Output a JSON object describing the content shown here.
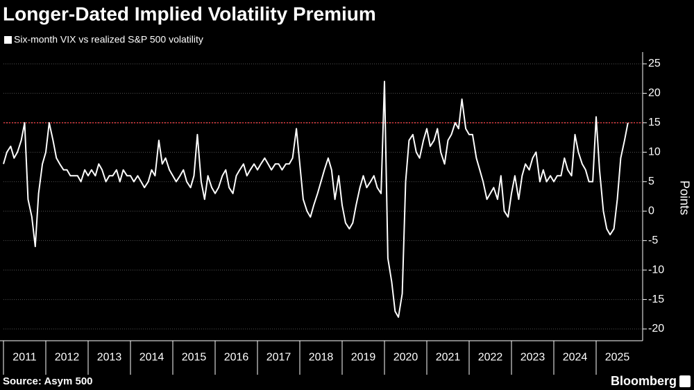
{
  "chart_data": {
    "type": "line",
    "title": "Longer-Dated Implied Volatility Premium",
    "y_label": "Points",
    "source": "Source: Asym 500",
    "brand": "Bloomberg",
    "x": [
      2011.0,
      2011.08,
      2011.17,
      2011.25,
      2011.33,
      2011.42,
      2011.5,
      2011.58,
      2011.67,
      2011.75,
      2011.83,
      2011.92,
      2012.0,
      2012.08,
      2012.17,
      2012.25,
      2012.33,
      2012.42,
      2012.5,
      2012.58,
      2012.67,
      2012.75,
      2012.83,
      2012.92,
      2013.0,
      2013.08,
      2013.17,
      2013.25,
      2013.33,
      2013.42,
      2013.5,
      2013.58,
      2013.67,
      2013.75,
      2013.83,
      2013.92,
      2014.0,
      2014.08,
      2014.17,
      2014.25,
      2014.33,
      2014.42,
      2014.5,
      2014.58,
      2014.67,
      2014.75,
      2014.83,
      2014.92,
      2015.0,
      2015.08,
      2015.17,
      2015.25,
      2015.33,
      2015.42,
      2015.5,
      2015.58,
      2015.67,
      2015.75,
      2015.83,
      2015.92,
      2016.0,
      2016.08,
      2016.17,
      2016.25,
      2016.33,
      2016.42,
      2016.5,
      2016.58,
      2016.67,
      2016.75,
      2016.83,
      2016.92,
      2017.0,
      2017.08,
      2017.17,
      2017.25,
      2017.33,
      2017.42,
      2017.5,
      2017.58,
      2017.67,
      2017.75,
      2017.83,
      2017.92,
      2018.0,
      2018.08,
      2018.17,
      2018.25,
      2018.33,
      2018.42,
      2018.5,
      2018.58,
      2018.67,
      2018.75,
      2018.83,
      2018.92,
      2019.0,
      2019.08,
      2019.17,
      2019.25,
      2019.33,
      2019.42,
      2019.5,
      2019.58,
      2019.67,
      2019.75,
      2019.83,
      2019.92,
      2020.0,
      2020.08,
      2020.17,
      2020.25,
      2020.33,
      2020.42,
      2020.5,
      2020.58,
      2020.67,
      2020.75,
      2020.83,
      2020.92,
      2021.0,
      2021.08,
      2021.17,
      2021.25,
      2021.33,
      2021.42,
      2021.5,
      2021.58,
      2021.67,
      2021.75,
      2021.83,
      2021.92,
      2022.0,
      2022.08,
      2022.17,
      2022.25,
      2022.33,
      2022.42,
      2022.5,
      2022.58,
      2022.67,
      2022.75,
      2022.83,
      2022.92,
      2023.0,
      2023.08,
      2023.17,
      2023.25,
      2023.33,
      2023.42,
      2023.5,
      2023.58,
      2023.67,
      2023.75,
      2023.83,
      2023.92,
      2024.0,
      2024.08,
      2024.17,
      2024.25,
      2024.33,
      2024.42,
      2024.5,
      2024.58,
      2024.67,
      2024.75,
      2024.83,
      2024.92,
      2025.0,
      2025.08,
      2025.17,
      2025.25,
      2025.33,
      2025.42,
      2025.5,
      2025.58,
      2025.67,
      2025.75
    ],
    "series": [
      {
        "name": "Six-month VIX vs realized S&P 500 volatility",
        "color": "#ffffff",
        "values": [
          8,
          10,
          11,
          9,
          10,
          12,
          15,
          2,
          -1,
          -6,
          3,
          8,
          10,
          15,
          12,
          9,
          8,
          7,
          7,
          6,
          6,
          6,
          5,
          7,
          6,
          7,
          6,
          8,
          7,
          5,
          6,
          6,
          7,
          5,
          7,
          6,
          6,
          5,
          6,
          5,
          4,
          5,
          7,
          6,
          12,
          8,
          9,
          7,
          6,
          5,
          6,
          7,
          5,
          4,
          6,
          13,
          5,
          2,
          6,
          4,
          3,
          4,
          6,
          7,
          4,
          3,
          6,
          7,
          8,
          6,
          7,
          8,
          7,
          8,
          9,
          8,
          7,
          8,
          8,
          7,
          8,
          8,
          9,
          14,
          8,
          2,
          0,
          -1,
          1,
          3,
          5,
          7,
          9,
          7,
          2,
          6,
          1,
          -2,
          -3,
          -2,
          1,
          4,
          6,
          4,
          5,
          6,
          4,
          3,
          22,
          -8,
          -12,
          -17,
          -18,
          -14,
          5,
          12,
          13,
          10,
          9,
          12,
          14,
          11,
          12,
          14,
          10,
          8,
          12,
          13,
          15,
          14,
          19,
          14,
          13,
          13,
          9,
          7,
          5,
          2,
          3,
          4,
          2,
          6,
          0,
          -1,
          3,
          6,
          2,
          6,
          8,
          7,
          9,
          10,
          5,
          7,
          5,
          6,
          5,
          6,
          6,
          9,
          7,
          6,
          13,
          10,
          8,
          7,
          5,
          5,
          16,
          7,
          0,
          -3,
          -4,
          -3,
          2,
          9,
          12,
          15
        ]
      }
    ],
    "xlim": [
      2011,
      2026
    ],
    "xticks": [
      2011,
      2012,
      2013,
      2014,
      2015,
      2016,
      2017,
      2018,
      2019,
      2020,
      2021,
      2022,
      2023,
      2024,
      2025
    ],
    "ylim": [
      -22,
      27
    ],
    "yticks": [
      25,
      20,
      15,
      10,
      5,
      0,
      -5,
      -10,
      -15,
      -20
    ],
    "grid": true,
    "reference_line": {
      "value": 15,
      "color": "#e0393e"
    }
  }
}
